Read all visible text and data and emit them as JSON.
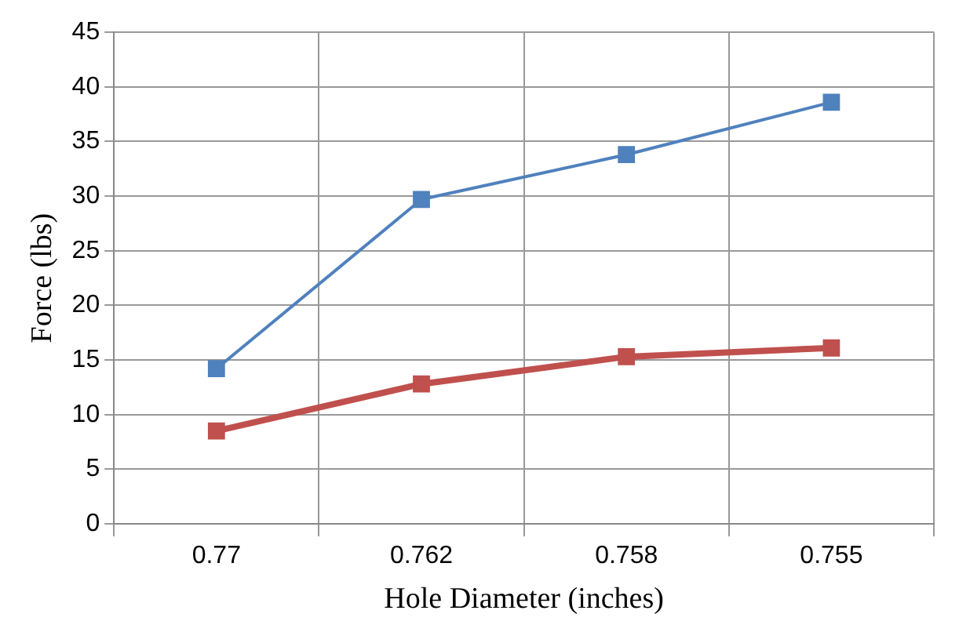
{
  "chart_data": {
    "type": "line",
    "xlabel": "Hole Diameter (inches)",
    "ylabel": "Force (lbs)",
    "categories": [
      "0.77",
      "0.762",
      "0.758",
      "0.755"
    ],
    "series": [
      {
        "color": "#4f81bd",
        "values": [
          14.2,
          29.7,
          33.8,
          38.6
        ]
      },
      {
        "color": "#c0504d",
        "values": [
          8.5,
          12.8,
          15.3,
          16.1
        ]
      }
    ],
    "ylim": [
      0,
      45
    ],
    "yticks": [
      0,
      5,
      10,
      15,
      20,
      25,
      30,
      35,
      40,
      45
    ],
    "grid": true,
    "legend": false,
    "marker": "square",
    "line_style": "solid"
  }
}
